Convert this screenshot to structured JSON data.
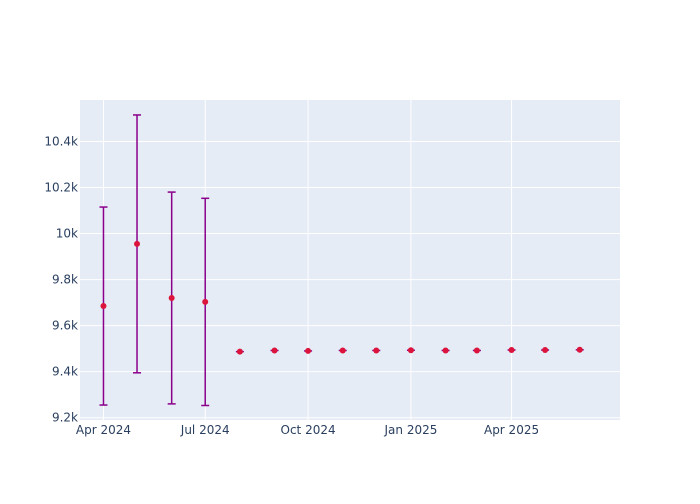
{
  "chart_data": {
    "type": "scatter",
    "title": "",
    "xlabel": "",
    "ylabel": "",
    "x_tick_labels": [
      "Apr 2024",
      "Jul 2024",
      "Oct 2024",
      "Jan 2025",
      "Apr 2025"
    ],
    "x_tick_dates": [
      "2024-04-01",
      "2024-07-01",
      "2024-10-01",
      "2025-01-01",
      "2025-04-01"
    ],
    "y_tick_labels": [
      "9.2k",
      "9.4k",
      "9.6k",
      "9.8k",
      "10k",
      "10.2k",
      "10.4k"
    ],
    "y_tick_values": [
      9200,
      9400,
      9600,
      9800,
      10000,
      10200,
      10400
    ],
    "xlim": [
      "2024-03-11",
      "2025-07-07"
    ],
    "ylim": [
      9190,
      10580
    ],
    "grid": true,
    "legend": "none",
    "colors": {
      "marker": "#DC143C",
      "error_bar": "#8B008B",
      "plot_bg": "#E5ECF6",
      "grid": "#FFFFFF",
      "tick_text": "#2A3F5F"
    },
    "series": [
      {
        "points": [
          {
            "x": "2024-04-01",
            "y": 9685,
            "error": 430
          },
          {
            "x": "2024-05-01",
            "y": 9955,
            "error": 560
          },
          {
            "x": "2024-06-01",
            "y": 9720,
            "error": 460
          },
          {
            "x": "2024-07-01",
            "y": 9703,
            "error": 450
          },
          {
            "x": "2024-08-01",
            "y": 9487,
            "error": 0
          },
          {
            "x": "2024-09-01",
            "y": 9492,
            "error": 0
          },
          {
            "x": "2024-10-01",
            "y": 9490,
            "error": 0
          },
          {
            "x": "2024-11-01",
            "y": 9492,
            "error": 0
          },
          {
            "x": "2024-12-01",
            "y": 9492,
            "error": 0
          },
          {
            "x": "2025-01-01",
            "y": 9493,
            "error": 0
          },
          {
            "x": "2025-02-01",
            "y": 9492,
            "error": 0
          },
          {
            "x": "2025-03-01",
            "y": 9492,
            "error": 0
          },
          {
            "x": "2025-04-01",
            "y": 9494,
            "error": 0
          },
          {
            "x": "2025-05-01",
            "y": 9494,
            "error": 0
          },
          {
            "x": "2025-06-01",
            "y": 9495,
            "error": 0
          }
        ]
      }
    ]
  }
}
